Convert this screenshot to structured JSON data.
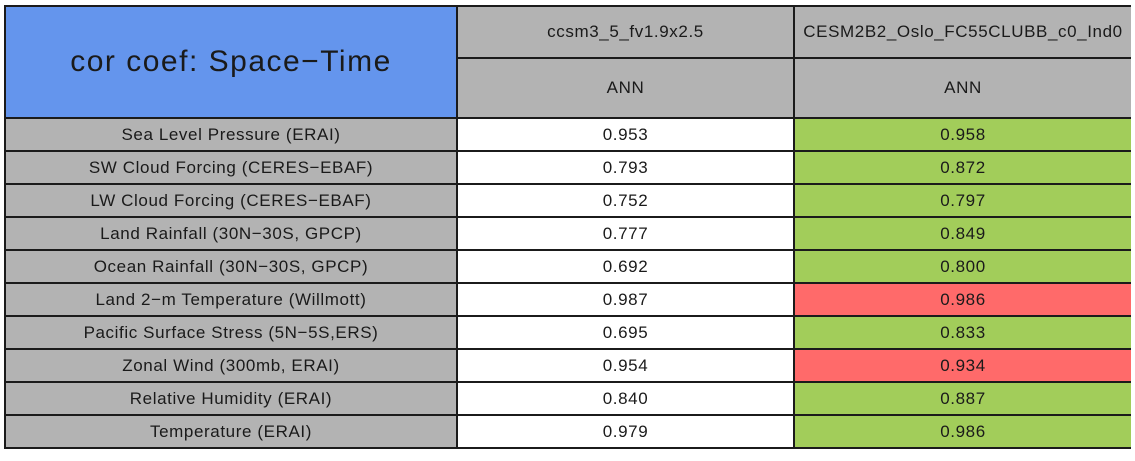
{
  "chart_data": {
    "type": "table",
    "title": "cor coef: Space−Time",
    "columns": [
      {
        "model": "ccsm3_5_fv1.9x2.5",
        "season": "ANN"
      },
      {
        "model": "CESM2B2_Oslo_FC55CLUBB_c0_Ind0",
        "season": "ANN"
      }
    ],
    "rows": [
      {
        "label": "Sea Level Pressure (ERAI)",
        "values": [
          "0.953",
          "0.958"
        ],
        "flag2": "better",
        "v2_bg": "#A2CD5A"
      },
      {
        "label": "SW Cloud Forcing (CERES−EBAF)",
        "values": [
          "0.793",
          "0.872"
        ],
        "flag2": "better",
        "v2_bg": "#A2CD5A"
      },
      {
        "label": "LW Cloud Forcing (CERES−EBAF)",
        "values": [
          "0.752",
          "0.797"
        ],
        "flag2": "better",
        "v2_bg": "#A2CD5A"
      },
      {
        "label": "Land Rainfall (30N−30S, GPCP)",
        "values": [
          "0.777",
          "0.849"
        ],
        "flag2": "better",
        "v2_bg": "#A2CD5A"
      },
      {
        "label": "Ocean Rainfall (30N−30S, GPCP)",
        "values": [
          "0.692",
          "0.800"
        ],
        "flag2": "better",
        "v2_bg": "#A2CD5A"
      },
      {
        "label": "Land 2−m Temperature (Willmott)",
        "values": [
          "0.987",
          "0.986"
        ],
        "flag2": "worse",
        "v2_bg": "#FF6A6A"
      },
      {
        "label": "Pacific Surface Stress (5N−5S,ERS)",
        "values": [
          "0.695",
          "0.833"
        ],
        "flag2": "better",
        "v2_bg": "#A2CD5A"
      },
      {
        "label": "Zonal Wind (300mb, ERAI)",
        "values": [
          "0.954",
          "0.934"
        ],
        "flag2": "worse",
        "v2_bg": "#FF6A6A"
      },
      {
        "label": "Relative Humidity (ERAI)",
        "values": [
          "0.840",
          "0.887"
        ],
        "flag2": "better",
        "v2_bg": "#A2CD5A"
      },
      {
        "label": "Temperature (ERAI)",
        "values": [
          "0.979",
          "0.986"
        ],
        "flag2": "better",
        "v2_bg": "#A2CD5A"
      }
    ],
    "colors": {
      "title_bg": "#6495ED",
      "header_bg": "#B3B3B3",
      "label_bg": "#B3B3B3",
      "plain_value_bg": "#FFFFFF",
      "better_bg": "#A2CD5A",
      "worse_bg": "#FF6A6A",
      "border": "#1B1B1B",
      "text": "#1A1A1A"
    },
    "layout": {
      "grid": "on",
      "legend": "none"
    }
  }
}
